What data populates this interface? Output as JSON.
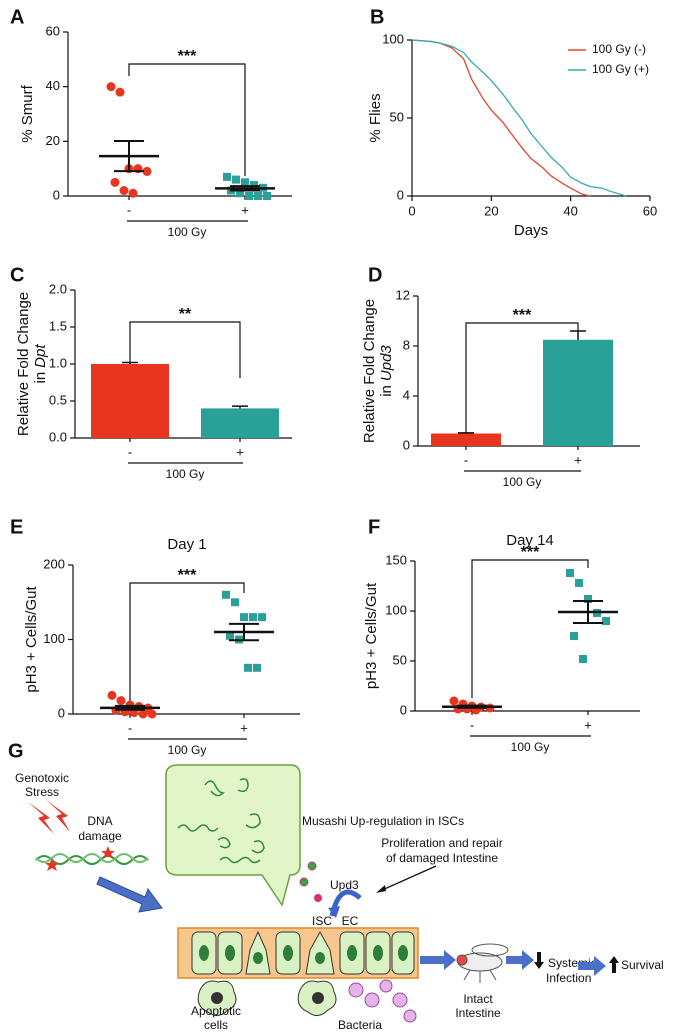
{
  "chart_data": [
    {
      "panel": "A",
      "type": "dotplot",
      "ylabel": "% Smurf",
      "ylim": [
        0,
        60
      ],
      "yticks": [
        0,
        20,
        40,
        60
      ],
      "categories": [
        "-",
        "+"
      ],
      "group_label": "100 Gy",
      "significance": "***",
      "groups": [
        {
          "color": "#e8351f",
          "marker": "circle",
          "values": [
            40,
            38,
            10,
            10,
            9,
            5,
            2,
            1
          ],
          "mean": 14.6,
          "sem": 5.5
        },
        {
          "color": "#2aa198",
          "marker": "square",
          "values": [
            7,
            6,
            5,
            4,
            3,
            2,
            1,
            0,
            0,
            0
          ],
          "mean": 2.8,
          "sem": 0.8
        }
      ]
    },
    {
      "panel": "B",
      "type": "line",
      "xlabel": "Days",
      "ylabel": "% Flies",
      "xlim": [
        0,
        60
      ],
      "xticks": [
        0,
        20,
        40,
        60
      ],
      "ylim": [
        0,
        100
      ],
      "yticks": [
        0,
        50,
        100
      ],
      "legend": "upper right",
      "x": [
        0,
        5,
        7,
        10,
        13,
        15,
        18,
        20,
        23,
        25,
        28,
        30,
        33,
        35,
        38,
        40,
        43,
        45,
        48,
        50,
        54
      ],
      "series": [
        {
          "name": "100 Gy (-)",
          "color": "#e8432d",
          "values": [
            100,
            99,
            98,
            95,
            88,
            75,
            62,
            55,
            47,
            40,
            30,
            24,
            18,
            13,
            8,
            5,
            1,
            0,
            null,
            null,
            null
          ]
        },
        {
          "name": "100 Gy (+)",
          "color": "#34aab0",
          "values": [
            100,
            99,
            98,
            96,
            92,
            86,
            79,
            74,
            65,
            58,
            48,
            40,
            31,
            25,
            18,
            12,
            8,
            6,
            5,
            3,
            0
          ]
        }
      ]
    },
    {
      "panel": "C",
      "type": "bar",
      "ylabel": "Relative Fold Change",
      "ylabel_prefix": "in",
      "gene": "Dpt",
      "ylim": [
        0,
        2
      ],
      "yticks": [
        {
          "value": 0,
          "label": "0.0"
        },
        0.5,
        {
          "value": 1,
          "label": "1.0"
        },
        1.5,
        {
          "value": 2,
          "label": "2.0"
        }
      ],
      "categories": [
        "-",
        "+"
      ],
      "group_label": "100 Gy",
      "significance": "**",
      "values": [
        1.0,
        0.4
      ],
      "errors": [
        0.02,
        0.03
      ],
      "colors": [
        "#e8351f",
        "#2aa198"
      ]
    },
    {
      "panel": "D",
      "type": "bar",
      "ylabel": "Relative Fold Change",
      "ylabel_prefix": "in",
      "gene": "Upd3",
      "ylim": [
        0,
        12
      ],
      "yticks": [
        0,
        4,
        8,
        12
      ],
      "categories": [
        "-",
        "+"
      ],
      "group_label": "100 Gy",
      "significance": "***",
      "values": [
        1.0,
        8.5
      ],
      "errors": [
        0.05,
        0.7
      ],
      "colors": [
        "#e8351f",
        "#2aa198"
      ]
    },
    {
      "panel": "E",
      "type": "dotplot",
      "title": "Day 1",
      "ylabel": "pH3 + Cells/Gut",
      "ylim": [
        0,
        200
      ],
      "yticks": [
        0,
        100,
        200
      ],
      "categories": [
        "-",
        "+"
      ],
      "group_label": "100 Gy",
      "significance": "***",
      "groups": [
        {
          "color": "#e8351f",
          "marker": "circle",
          "values": [
            25,
            18,
            12,
            10,
            8,
            5,
            3,
            2,
            0,
            0
          ],
          "mean": 8.3,
          "sem": 2.6
        },
        {
          "color": "#2aa198",
          "marker": "square",
          "values": [
            160,
            150,
            130,
            130,
            130,
            105,
            100,
            62,
            62
          ],
          "mean": 110,
          "sem": 11
        }
      ]
    },
    {
      "panel": "F",
      "type": "dotplot",
      "title": "Day 14",
      "ylabel": "pH3 + Cells/Gut",
      "ylim": [
        0,
        150
      ],
      "yticks": [
        0,
        50,
        100,
        150
      ],
      "categories": [
        "-",
        "+"
      ],
      "group_label": "100 Gy",
      "significance": "***",
      "groups": [
        {
          "color": "#e8351f",
          "marker": "circle",
          "values": [
            10,
            7,
            5,
            4,
            3,
            2,
            2,
            1
          ],
          "mean": 4.3,
          "sem": 1.1
        },
        {
          "color": "#2aa198",
          "marker": "square",
          "values": [
            138,
            128,
            112,
            98,
            90,
            75,
            52
          ],
          "mean": 99,
          "sem": 11
        }
      ]
    }
  ],
  "diagram": {
    "letter": "G",
    "stress": [
      "Genotoxic",
      "Stress"
    ],
    "dna": [
      "DNA",
      "damage"
    ],
    "musashi": "Musashi Up-regulation in ISCs",
    "proliferation": [
      "Proliferation and repair",
      "of damaged Intestine"
    ],
    "cytokine": "Upd3",
    "isc": "ISC",
    "ec": "EC",
    "apoptotic": [
      "Apoptotic",
      "cells"
    ],
    "bacteria": "Bacteria",
    "intact": [
      "Intact",
      "Intestine"
    ],
    "infection": [
      "Systemic",
      "Infection"
    ],
    "survival": "Survival"
  }
}
